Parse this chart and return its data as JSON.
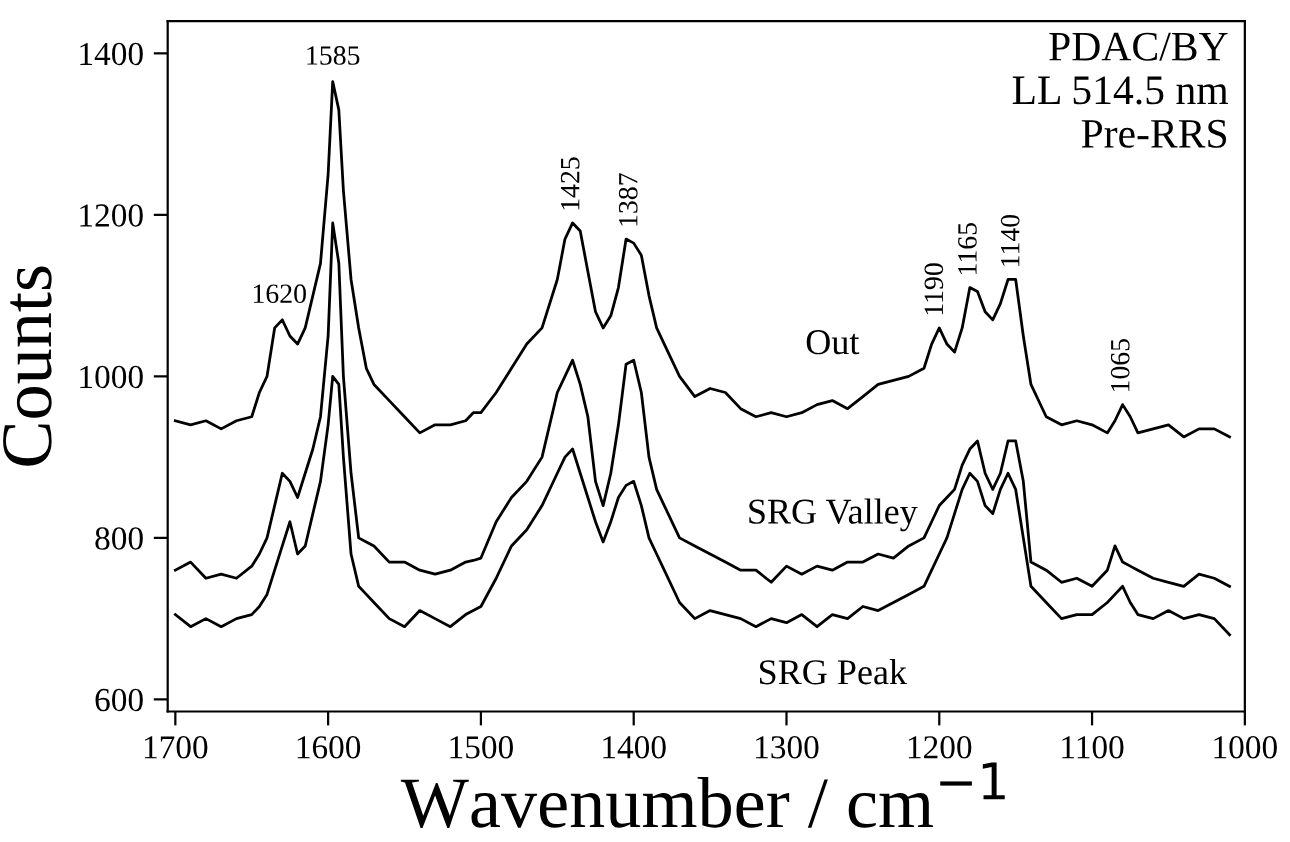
{
  "chart_data": {
    "type": "line",
    "xlabel": "Wavenumber / cm$^{−1}$",
    "ylabel": "Counts",
    "xlim": [
      1705,
      1000
    ],
    "ylim": [
      585,
      1440
    ],
    "xticks": [
      1700,
      1600,
      1500,
      1400,
      1300,
      1200,
      1100,
      1000
    ],
    "yticks": [
      600,
      800,
      1000,
      1200,
      1400
    ],
    "grid": false,
    "legend": false,
    "marker": "none",
    "line_style": "solid",
    "x": [
      1700,
      1690,
      1680,
      1670,
      1660,
      1650,
      1645,
      1640,
      1635,
      1630,
      1625,
      1620,
      1615,
      1610,
      1605,
      1600,
      1597,
      1593,
      1590,
      1585,
      1580,
      1575,
      1570,
      1560,
      1550,
      1540,
      1530,
      1520,
      1510,
      1505,
      1500,
      1490,
      1480,
      1470,
      1460,
      1450,
      1445,
      1440,
      1435,
      1430,
      1425,
      1420,
      1415,
      1410,
      1405,
      1400,
      1395,
      1390,
      1385,
      1380,
      1370,
      1360,
      1350,
      1340,
      1330,
      1320,
      1310,
      1300,
      1290,
      1280,
      1270,
      1260,
      1250,
      1240,
      1230,
      1220,
      1210,
      1205,
      1200,
      1195,
      1190,
      1185,
      1180,
      1175,
      1170,
      1165,
      1160,
      1155,
      1150,
      1145,
      1140,
      1130,
      1120,
      1110,
      1100,
      1090,
      1085,
      1080,
      1075,
      1070,
      1060,
      1050,
      1040,
      1030,
      1020,
      1010
    ],
    "series": [
      {
        "name": "Out",
        "color": "#000000",
        "values": [
          945,
          940,
          945,
          935,
          945,
          950,
          980,
          1000,
          1060,
          1070,
          1050,
          1040,
          1060,
          1100,
          1140,
          1250,
          1365,
          1330,
          1230,
          1120,
          1060,
          1010,
          990,
          970,
          950,
          930,
          940,
          940,
          945,
          955,
          955,
          980,
          1010,
          1040,
          1060,
          1120,
          1170,
          1190,
          1180,
          1130,
          1080,
          1060,
          1075,
          1110,
          1170,
          1165,
          1150,
          1100,
          1060,
          1040,
          1000,
          975,
          985,
          980,
          960,
          950,
          955,
          950,
          955,
          965,
          970,
          960,
          975,
          990,
          995,
          1000,
          1010,
          1040,
          1060,
          1040,
          1030,
          1060,
          1110,
          1105,
          1080,
          1070,
          1090,
          1120,
          1120,
          1050,
          990,
          950,
          940,
          945,
          940,
          930,
          945,
          965,
          950,
          930,
          935,
          940,
          925,
          935,
          935,
          925
        ]
      },
      {
        "name": "SRG Valley",
        "color": "#000000",
        "values": [
          760,
          770,
          750,
          755,
          750,
          765,
          780,
          800,
          840,
          880,
          870,
          850,
          880,
          910,
          950,
          1050,
          1190,
          1140,
          1000,
          880,
          800,
          795,
          790,
          770,
          770,
          760,
          755,
          760,
          770,
          772,
          775,
          820,
          850,
          870,
          900,
          980,
          1000,
          1020,
          990,
          950,
          870,
          840,
          880,
          940,
          1015,
          1020,
          980,
          900,
          860,
          840,
          800,
          790,
          780,
          770,
          760,
          760,
          745,
          765,
          755,
          765,
          760,
          770,
          770,
          780,
          775,
          790,
          800,
          820,
          840,
          850,
          860,
          890,
          910,
          920,
          880,
          860,
          880,
          920,
          920,
          870,
          770,
          760,
          745,
          750,
          740,
          760,
          790,
          770,
          765,
          760,
          750,
          745,
          740,
          755,
          750,
          740
        ]
      },
      {
        "name": "SRG Peak",
        "color": "#000000",
        "values": [
          705,
          690,
          700,
          690,
          700,
          705,
          715,
          730,
          760,
          790,
          820,
          780,
          790,
          830,
          870,
          940,
          1000,
          990,
          900,
          780,
          740,
          730,
          720,
          700,
          690,
          710,
          700,
          690,
          705,
          710,
          715,
          750,
          790,
          810,
          840,
          880,
          900,
          910,
          880,
          850,
          820,
          795,
          820,
          850,
          865,
          870,
          840,
          800,
          780,
          760,
          720,
          700,
          710,
          705,
          700,
          690,
          700,
          695,
          705,
          690,
          705,
          700,
          715,
          710,
          720,
          730,
          740,
          760,
          780,
          800,
          830,
          860,
          880,
          870,
          840,
          830,
          860,
          880,
          860,
          800,
          740,
          720,
          700,
          705,
          705,
          720,
          730,
          740,
          720,
          705,
          700,
          710,
          700,
          705,
          700,
          680
        ]
      }
    ],
    "annotations": [
      {
        "text": "1620",
        "x": 1632,
        "y": 1070
      },
      {
        "text": "1585",
        "x": 1597,
        "y": 1365
      },
      {
        "text": "1425",
        "x": 1440,
        "y": 1190
      },
      {
        "text": "1387",
        "x": 1402,
        "y": 1170
      },
      {
        "text": "1190",
        "x": 1202,
        "y": 1060
      },
      {
        "text": "1165",
        "x": 1180,
        "y": 1110
      },
      {
        "text": "1140",
        "x": 1152,
        "y": 1120
      },
      {
        "text": "1065",
        "x": 1080,
        "y": 965
      },
      "PDAC/BY\nLL 514.5 nm\nPre-RRS"
    ]
  }
}
